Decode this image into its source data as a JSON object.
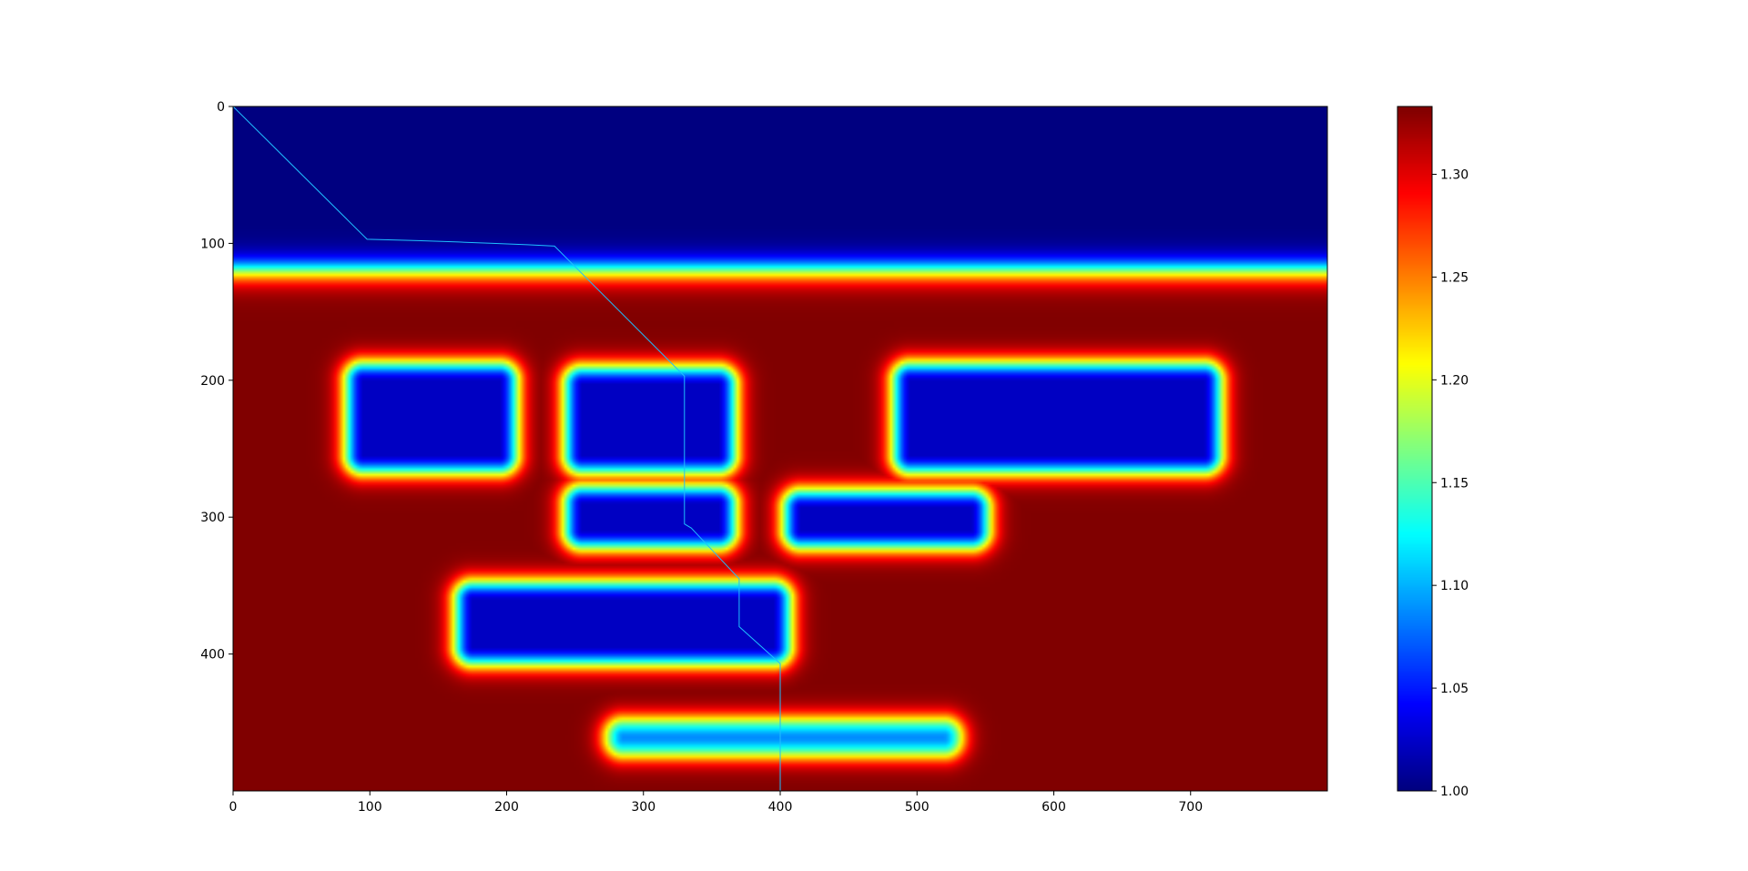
{
  "chart_data": {
    "type": "heatmap",
    "title": "",
    "xlabel": "",
    "ylabel": "",
    "colormap": "jet",
    "xlim": [
      0,
      800
    ],
    "ylim": [
      500,
      0
    ],
    "xticks": [
      "0",
      "100",
      "200",
      "300",
      "400",
      "500",
      "600",
      "700"
    ],
    "yticks": [
      "0",
      "100",
      "200",
      "300",
      "400"
    ],
    "field": {
      "background_value": 1.333,
      "layer": {
        "value": 1.0,
        "top": 0,
        "bottom": 120
      },
      "slots": [
        {
          "x0": 95,
          "x1": 195,
          "y0": 200,
          "y1": 255,
          "value": 1.0
        },
        {
          "x0": 255,
          "x1": 355,
          "y0": 203,
          "y1": 255,
          "value": 1.0
        },
        {
          "x0": 495,
          "x1": 710,
          "y0": 200,
          "y1": 255,
          "value": 1.0
        },
        {
          "x0": 255,
          "x1": 355,
          "y0": 290,
          "y1": 310,
          "value": 1.0
        },
        {
          "x0": 415,
          "x1": 540,
          "y0": 293,
          "y1": 310,
          "value": 1.0
        },
        {
          "x0": 175,
          "x1": 395,
          "y0": 360,
          "y1": 395,
          "value": 1.0
        },
        {
          "x0": 285,
          "x1": 520,
          "y0": 460,
          "y1": 462,
          "value": 1.07
        }
      ]
    },
    "path": {
      "x": [
        0,
        98,
        135,
        165,
        190,
        215,
        235,
        330,
        330,
        335,
        370,
        370,
        400,
        400
      ],
      "y": [
        0,
        97,
        98,
        99,
        100,
        101,
        102,
        197,
        305,
        308,
        345,
        380,
        407,
        500
      ],
      "color": "#1fbfff"
    },
    "colorbar": {
      "min": 1.0,
      "max": 1.333,
      "ticks": [
        "1.00",
        "1.05",
        "1.10",
        "1.15",
        "1.20",
        "1.25",
        "1.30"
      ]
    }
  }
}
